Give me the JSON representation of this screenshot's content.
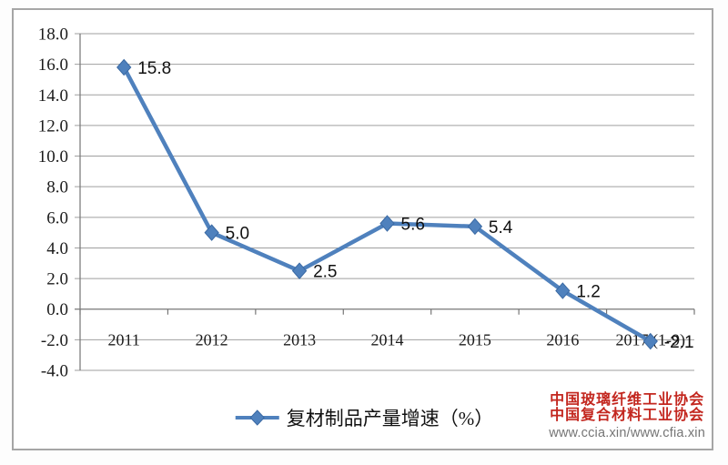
{
  "chart_data": {
    "type": "line",
    "title": "",
    "categories": [
      "2011",
      "2012",
      "2013",
      "2014",
      "2015",
      "2016",
      "2017 (1-9)"
    ],
    "series": [
      {
        "name": "复材制品产量增速（%）",
        "values": [
          15.8,
          5.0,
          2.5,
          5.6,
          5.4,
          1.2,
          -2.1
        ]
      }
    ],
    "data_labels": [
      "15.8",
      "5.0",
      "2.5",
      "5.6",
      "5.4",
      "1.2",
      "-2.1"
    ],
    "y_ticks": [
      "18.0",
      "16.0",
      "14.0",
      "12.0",
      "10.0",
      "8.0",
      "6.0",
      "4.0",
      "2.0",
      "0.0",
      "-2.0",
      "-4.0"
    ],
    "ylim": [
      -4.0,
      18.0
    ],
    "y_tick_step": 2.0,
    "xlabel": "",
    "ylabel": "",
    "grid": true,
    "legend_position": "bottom",
    "marker_shape": "diamond",
    "line_color": "#4f81bd",
    "marker_edge_color": "#3a69a3"
  },
  "legend": {
    "label": "复材制品产量增速（%）"
  },
  "watermark": {
    "line1": "中国玻璃纤维工业协会",
    "line2": "中国复合材料工业协会",
    "url": "www.ccia.xin/www.cfia.xin",
    "text_color": "#c3271f",
    "url_color": "#757575"
  }
}
